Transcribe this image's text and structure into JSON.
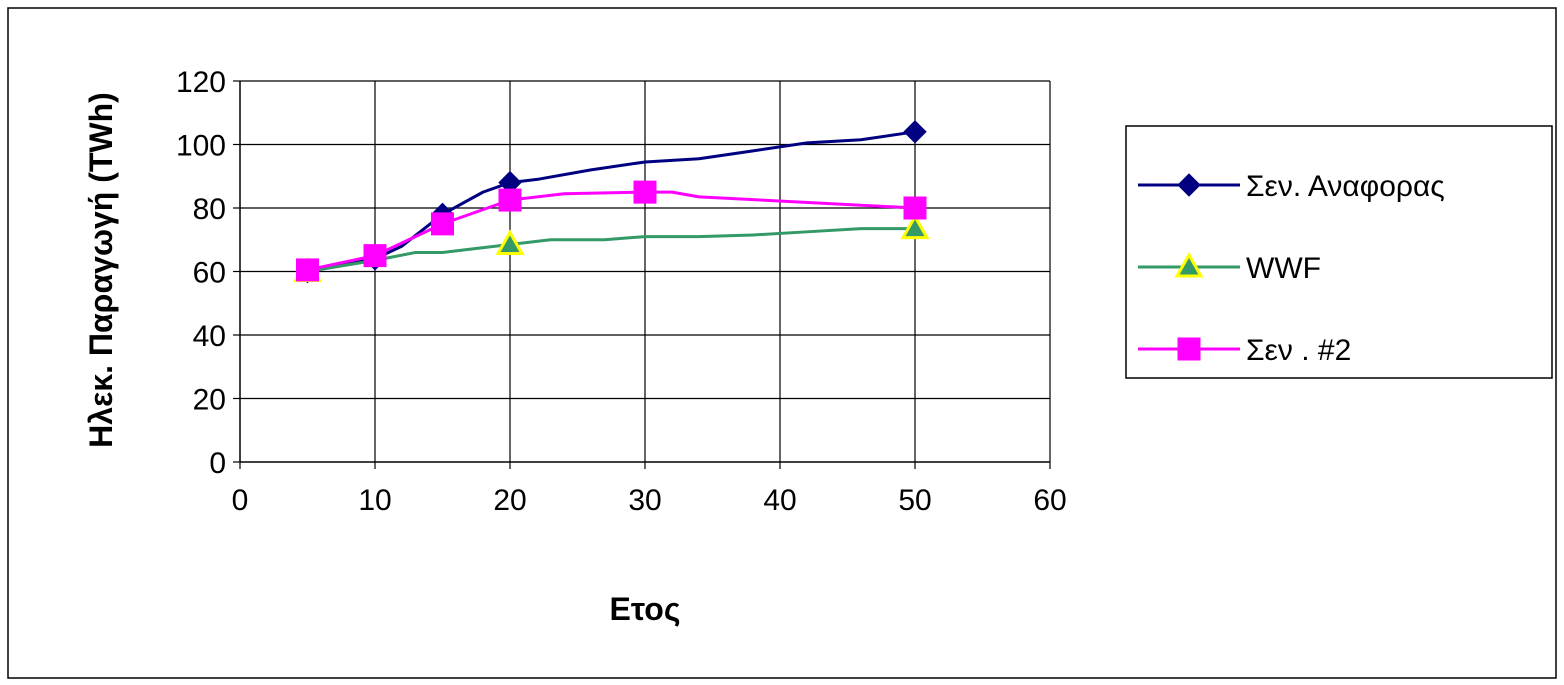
{
  "chart_data": {
    "type": "line",
    "title": "",
    "xlabel": "Ετος",
    "ylabel": "Ηλεκ. Παραγωγή (TWh)",
    "xlim": [
      0,
      60
    ],
    "ylim": [
      0,
      120
    ],
    "x_ticks": [
      0,
      10,
      20,
      30,
      40,
      50,
      60
    ],
    "y_ticks": [
      0,
      20,
      40,
      60,
      80,
      100,
      120
    ],
    "grid": true,
    "legend_position": "right",
    "series": [
      {
        "name": "Σεν. Αναφορας",
        "color": "#000080",
        "marker": "diamond",
        "line_points": [
          [
            5,
            60
          ],
          [
            10,
            64
          ],
          [
            12,
            68
          ],
          [
            15,
            78
          ],
          [
            18,
            85
          ],
          [
            20,
            88
          ],
          [
            22,
            89
          ],
          [
            26,
            92
          ],
          [
            30,
            94.5
          ],
          [
            34,
            95.5
          ],
          [
            38,
            98
          ],
          [
            42,
            100.5
          ],
          [
            46,
            101.5
          ],
          [
            50,
            104
          ]
        ],
        "marker_points": [
          [
            5,
            60
          ],
          [
            10,
            64
          ],
          [
            15,
            78
          ],
          [
            20,
            88
          ],
          [
            50,
            104
          ]
        ]
      },
      {
        "name": "WWF",
        "color": "#339966",
        "marker": "triangle",
        "line_points": [
          [
            5,
            60
          ],
          [
            10,
            63.5
          ],
          [
            13,
            66
          ],
          [
            15,
            66
          ],
          [
            17,
            67
          ],
          [
            20,
            68.5
          ],
          [
            23,
            70
          ],
          [
            27,
            70
          ],
          [
            30,
            71
          ],
          [
            34,
            71
          ],
          [
            38,
            71.5
          ],
          [
            42,
            72.5
          ],
          [
            46,
            73.5
          ],
          [
            50,
            73.5
          ]
        ],
        "marker_points": [
          [
            5,
            60
          ],
          [
            20,
            68.5
          ],
          [
            50,
            73.5
          ]
        ]
      },
      {
        "name": "Σεν . #2",
        "color": "#ff00ff",
        "marker": "square",
        "line_points": [
          [
            5,
            60.5
          ],
          [
            10,
            65
          ],
          [
            15,
            75
          ],
          [
            20,
            82.5
          ],
          [
            24,
            84.5
          ],
          [
            30,
            85
          ],
          [
            32,
            85
          ],
          [
            34,
            83.5
          ],
          [
            50,
            80
          ]
        ],
        "marker_points": [
          [
            5,
            60.5
          ],
          [
            10,
            65
          ],
          [
            15,
            75
          ],
          [
            20,
            82.5
          ],
          [
            30,
            85
          ],
          [
            50,
            80
          ]
        ]
      }
    ]
  }
}
